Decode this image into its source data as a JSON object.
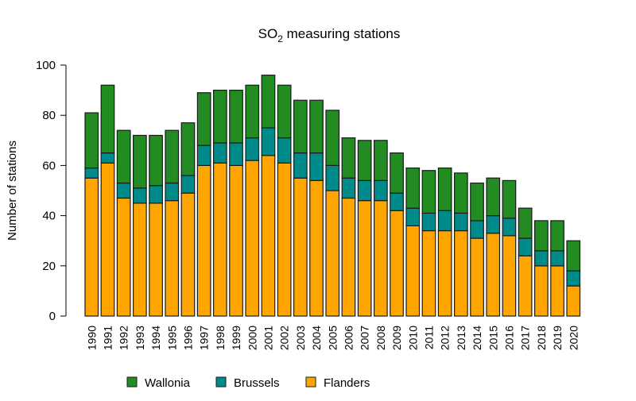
{
  "chart_data": {
    "type": "bar",
    "stacked": true,
    "title": "SO2 measuring stations",
    "title_main": "SO",
    "title_sub": "2",
    "title_rest": " measuring stations",
    "xlabel": "",
    "ylabel": "Number of stations",
    "ylim": [
      0,
      100
    ],
    "yticks": [
      "0",
      "20",
      "40",
      "60",
      "80",
      "100"
    ],
    "grid": false,
    "legend_position": "bottom",
    "categories": [
      "1990",
      "1991",
      "1992",
      "1993",
      "1994",
      "1995",
      "1996",
      "1997",
      "1998",
      "1999",
      "2000",
      "2001",
      "2002",
      "2003",
      "2004",
      "2005",
      "2006",
      "2007",
      "2008",
      "2009",
      "2010",
      "2011",
      "2012",
      "2013",
      "2014",
      "2015",
      "2016",
      "2017",
      "2018",
      "2019",
      "2020"
    ],
    "series": [
      {
        "name": "Flanders",
        "color": "#FFA500",
        "values": [
          55,
          61,
          47,
          45,
          45,
          46,
          49,
          60,
          61,
          60,
          62,
          64,
          61,
          55,
          54,
          50,
          47,
          46,
          46,
          42,
          36,
          34,
          34,
          34,
          31,
          33,
          32,
          24,
          20,
          20,
          12
        ]
      },
      {
        "name": "Brussels",
        "color": "#008B8B",
        "values": [
          4,
          4,
          6,
          6,
          7,
          7,
          7,
          8,
          8,
          9,
          9,
          11,
          10,
          10,
          11,
          10,
          8,
          8,
          8,
          7,
          7,
          7,
          8,
          7,
          7,
          7,
          7,
          7,
          6,
          6,
          6
        ]
      },
      {
        "name": "Wallonia",
        "color": "#228B22",
        "values": [
          22,
          27,
          21,
          21,
          20,
          21,
          21,
          21,
          21,
          21,
          21,
          21,
          21,
          21,
          21,
          22,
          16,
          16,
          16,
          16,
          16,
          17,
          17,
          16,
          15,
          15,
          15,
          12,
          12,
          12,
          12
        ]
      }
    ],
    "legend": [
      "Wallonia",
      "Brussels",
      "Flanders"
    ]
  }
}
